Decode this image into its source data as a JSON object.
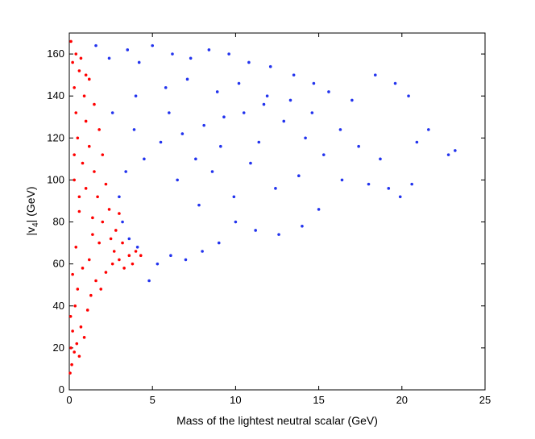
{
  "chart_data": {
    "type": "scatter",
    "xlabel": "Mass of the lightest neutral scalar (GeV)",
    "ylabel": {
      "prefix": "|v",
      "subscript": "4",
      "suffix": "| (GeV)"
    },
    "xlim": [
      0,
      25
    ],
    "ylim": [
      0,
      170
    ],
    "xticks": [
      0,
      5,
      10,
      15,
      20,
      25
    ],
    "yticks": [
      0,
      20,
      40,
      60,
      80,
      100,
      120,
      140,
      160
    ],
    "grid": false,
    "legend": "none",
    "series": [
      {
        "color": "#ff0000",
        "points": [
          [
            0.05,
            8
          ],
          [
            0.15,
            12
          ],
          [
            0.1,
            20
          ],
          [
            0.3,
            18
          ],
          [
            0.2,
            28
          ],
          [
            0.45,
            22
          ],
          [
            0.6,
            16
          ],
          [
            0.08,
            35
          ],
          [
            0.35,
            40
          ],
          [
            0.7,
            30
          ],
          [
            0.9,
            25
          ],
          [
            1.1,
            38
          ],
          [
            0.5,
            48
          ],
          [
            1.3,
            45
          ],
          [
            0.2,
            55
          ],
          [
            0.8,
            58
          ],
          [
            1.6,
            52
          ],
          [
            1.9,
            48
          ],
          [
            2.2,
            56
          ],
          [
            2.6,
            60
          ],
          [
            3.0,
            62
          ],
          [
            3.3,
            58
          ],
          [
            3.6,
            64
          ],
          [
            4.0,
            66
          ],
          [
            4.3,
            64
          ],
          [
            1.2,
            62
          ],
          [
            0.4,
            68
          ],
          [
            1.8,
            70
          ],
          [
            2.5,
            72
          ],
          [
            3.2,
            70
          ],
          [
            2.8,
            76
          ],
          [
            2.0,
            80
          ],
          [
            1.4,
            82
          ],
          [
            0.6,
            85
          ],
          [
            2.4,
            86
          ],
          [
            3.0,
            84
          ],
          [
            1.7,
            92
          ],
          [
            1.0,
            96
          ],
          [
            0.3,
            100
          ],
          [
            2.2,
            98
          ],
          [
            1.5,
            104
          ],
          [
            0.8,
            108
          ],
          [
            2.0,
            112
          ],
          [
            1.2,
            116
          ],
          [
            0.5,
            120
          ],
          [
            1.8,
            124
          ],
          [
            1.0,
            128
          ],
          [
            0.4,
            132
          ],
          [
            1.5,
            136
          ],
          [
            0.9,
            140
          ],
          [
            0.3,
            144
          ],
          [
            1.2,
            148
          ],
          [
            0.6,
            152
          ],
          [
            0.2,
            156
          ],
          [
            0.4,
            160
          ],
          [
            0.1,
            166
          ],
          [
            0.7,
            158
          ],
          [
            1.0,
            150
          ],
          [
            0.3,
            112
          ],
          [
            0.6,
            92
          ],
          [
            1.4,
            74
          ],
          [
            2.7,
            66
          ],
          [
            3.8,
            60
          ]
        ]
      },
      {
        "color": "#2233ee",
        "points": [
          [
            1.6,
            164
          ],
          [
            2.4,
            158
          ],
          [
            3.5,
            162
          ],
          [
            4.2,
            156
          ],
          [
            5.0,
            164
          ],
          [
            6.2,
            160
          ],
          [
            7.3,
            158
          ],
          [
            8.4,
            162
          ],
          [
            9.6,
            160
          ],
          [
            10.8,
            156
          ],
          [
            12.1,
            154
          ],
          [
            13.5,
            150
          ],
          [
            14.7,
            146
          ],
          [
            15.6,
            142
          ],
          [
            17.0,
            138
          ],
          [
            18.4,
            150
          ],
          [
            19.6,
            146
          ],
          [
            20.4,
            140
          ],
          [
            21.6,
            124
          ],
          [
            22.8,
            112
          ],
          [
            23.2,
            114
          ],
          [
            20.9,
            118
          ],
          [
            19.2,
            96
          ],
          [
            18.0,
            98
          ],
          [
            16.4,
            100
          ],
          [
            15.0,
            86
          ],
          [
            14.0,
            78
          ],
          [
            12.6,
            74
          ],
          [
            11.2,
            76
          ],
          [
            10.0,
            80
          ],
          [
            9.0,
            70
          ],
          [
            8.0,
            66
          ],
          [
            7.0,
            62
          ],
          [
            6.1,
            64
          ],
          [
            5.3,
            60
          ],
          [
            4.8,
            52
          ],
          [
            4.1,
            68
          ],
          [
            3.6,
            72
          ],
          [
            3.2,
            80
          ],
          [
            3.0,
            92
          ],
          [
            3.4,
            104
          ],
          [
            4.5,
            110
          ],
          [
            5.5,
            118
          ],
          [
            6.8,
            122
          ],
          [
            8.1,
            126
          ],
          [
            9.3,
            130
          ],
          [
            10.5,
            132
          ],
          [
            11.7,
            136
          ],
          [
            12.9,
            128
          ],
          [
            14.2,
            120
          ],
          [
            15.3,
            112
          ],
          [
            16.3,
            124
          ],
          [
            17.4,
            116
          ],
          [
            18.7,
            110
          ],
          [
            19.9,
            92
          ],
          [
            20.6,
            98
          ],
          [
            4.0,
            140
          ],
          [
            5.8,
            144
          ],
          [
            7.1,
            148
          ],
          [
            8.9,
            142
          ],
          [
            10.2,
            146
          ],
          [
            11.9,
            140
          ],
          [
            13.3,
            138
          ],
          [
            6.5,
            100
          ],
          [
            8.6,
            104
          ],
          [
            10.9,
            108
          ],
          [
            12.4,
            96
          ],
          [
            7.8,
            88
          ],
          [
            9.9,
            92
          ],
          [
            13.8,
            102
          ],
          [
            2.6,
            132
          ],
          [
            3.9,
            124
          ],
          [
            6.0,
            132
          ],
          [
            7.6,
            110
          ],
          [
            9.1,
            116
          ],
          [
            11.4,
            118
          ],
          [
            14.6,
            132
          ]
        ]
      }
    ]
  }
}
